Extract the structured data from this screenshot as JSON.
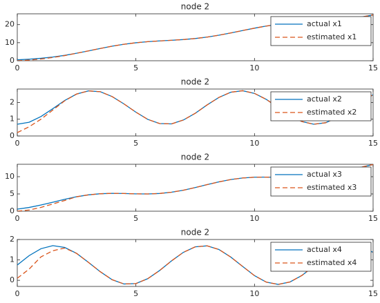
{
  "chart_data": [
    {
      "type": "line",
      "title": "node 2",
      "x": [
        0,
        0.5,
        1,
        1.5,
        2,
        2.5,
        3,
        3.5,
        4,
        4.5,
        5,
        5.5,
        6,
        6.5,
        7,
        7.5,
        8,
        8.5,
        9,
        9.5,
        10,
        10.5,
        11,
        11.5,
        12,
        12.5,
        13,
        13.5,
        14,
        14.5,
        15
      ],
      "series": [
        {
          "name": "actual x1",
          "color": "#0072bd",
          "style": "solid",
          "values": [
            0.5,
            0.87,
            1.36,
            2.05,
            2.99,
            4.15,
            5.46,
            6.8,
            8.06,
            9.13,
            9.96,
            10.56,
            10.98,
            11.34,
            11.74,
            12.31,
            13.11,
            14.15,
            15.39,
            16.73,
            18.04,
            19.23,
            20.2,
            20.93,
            21.44,
            21.82,
            22.18,
            22.65,
            23.31,
            24.22,
            25.35
          ]
        },
        {
          "name": "estimated x1",
          "color": "#d95319",
          "style": "dashed",
          "values": [
            0,
            0.35,
            0.95,
            1.8,
            2.85,
            4.15,
            5.46,
            6.8,
            8.06,
            9.13,
            9.96,
            10.56,
            10.98,
            11.34,
            11.74,
            12.31,
            13.11,
            14.15,
            15.39,
            16.73,
            18.04,
            19.23,
            20.2,
            20.93,
            21.44,
            21.82,
            22.18,
            22.65,
            23.31,
            24.22,
            25.35
          ]
        }
      ],
      "xlim": [
        0,
        15
      ],
      "xticks": [
        0,
        5,
        10,
        15
      ],
      "ylim": [
        0,
        26
      ],
      "yticks": [
        0,
        10,
        20
      ],
      "legend": "upper right"
    },
    {
      "type": "line",
      "title": "node 2",
      "x": [
        0,
        0.5,
        1,
        1.5,
        2,
        2.5,
        3,
        3.5,
        4,
        4.5,
        5,
        5.5,
        6,
        6.5,
        7,
        7.5,
        8,
        8.5,
        9,
        9.5,
        10,
        10.5,
        11,
        11.5,
        12,
        12.5,
        13,
        13.5,
        14,
        14.5,
        15
      ],
      "series": [
        {
          "name": "actual x2",
          "color": "#0072bd",
          "style": "solid",
          "values": [
            0.7,
            0.82,
            1.16,
            1.63,
            2.12,
            2.5,
            2.69,
            2.64,
            2.35,
            1.91,
            1.42,
            0.99,
            0.74,
            0.72,
            0.95,
            1.35,
            1.85,
            2.3,
            2.61,
            2.7,
            2.54,
            2.18,
            1.7,
            1.22,
            0.86,
            0.7,
            0.79,
            1.11,
            1.56,
            2.05,
            2.46
          ]
        },
        {
          "name": "estimated x2",
          "color": "#d95319",
          "style": "dashed",
          "values": [
            0.2,
            0.55,
            1.0,
            1.55,
            2.1,
            2.5,
            2.69,
            2.64,
            2.35,
            1.91,
            1.42,
            0.99,
            0.74,
            0.72,
            0.95,
            1.35,
            1.85,
            2.3,
            2.61,
            2.7,
            2.54,
            2.18,
            1.7,
            1.22,
            0.86,
            0.7,
            0.79,
            1.11,
            1.56,
            2.05,
            2.46
          ]
        }
      ],
      "xlim": [
        0,
        15
      ],
      "xticks": [
        0,
        5,
        10,
        15
      ],
      "ylim": [
        0,
        2.8
      ],
      "yticks": [
        0,
        1,
        2
      ],
      "legend": "upper right"
    },
    {
      "type": "line",
      "title": "node 2",
      "x": [
        0,
        0.5,
        1,
        1.5,
        2,
        2.5,
        3,
        3.5,
        4,
        4.5,
        5,
        5.5,
        6,
        6.5,
        7,
        7.5,
        8,
        8.5,
        9,
        9.5,
        10,
        10.5,
        11,
        11.5,
        12,
        12.5,
        13,
        13.5,
        14,
        14.5,
        15
      ],
      "series": [
        {
          "name": "actual x3",
          "color": "#0072bd",
          "style": "solid",
          "values": [
            0.6,
            1.09,
            1.79,
            2.61,
            3.45,
            4.19,
            4.74,
            5.06,
            5.17,
            5.13,
            5.03,
            5.0,
            5.14,
            5.5,
            6.08,
            6.85,
            7.69,
            8.5,
            9.17,
            9.62,
            9.85,
            9.88,
            9.8,
            9.72,
            9.75,
            9.98,
            10.44,
            11.11,
            11.92,
            12.76,
            13.52
          ]
        },
        {
          "name": "estimated x3",
          "color": "#d95319",
          "style": "dashed",
          "values": [
            0,
            0.35,
            1.1,
            2.1,
            3.1,
            4.19,
            4.74,
            5.06,
            5.17,
            5.13,
            5.03,
            5.0,
            5.14,
            5.5,
            6.08,
            6.85,
            7.69,
            8.5,
            9.17,
            9.62,
            9.85,
            9.88,
            9.8,
            9.72,
            9.75,
            9.98,
            10.44,
            11.11,
            11.92,
            12.76,
            13.52
          ]
        }
      ],
      "xlim": [
        0,
        15
      ],
      "xticks": [
        0,
        5,
        10,
        15
      ],
      "ylim": [
        0,
        13.6
      ],
      "yticks": [
        0,
        5,
        10
      ],
      "legend": "upper right"
    },
    {
      "type": "line",
      "title": "node 2",
      "x": [
        0,
        0.5,
        1,
        1.5,
        2,
        2.5,
        3,
        3.5,
        4,
        4.5,
        5,
        5.5,
        6,
        6.5,
        7,
        7.5,
        8,
        8.5,
        9,
        9.5,
        10,
        10.5,
        11,
        11.5,
        12,
        12.5,
        13,
        13.5,
        14,
        14.5,
        15
      ],
      "series": [
        {
          "name": "actual x4",
          "color": "#0072bd",
          "style": "solid",
          "values": [
            0.75,
            1.21,
            1.55,
            1.7,
            1.61,
            1.32,
            0.88,
            0.42,
            0.03,
            -0.18,
            -0.16,
            0.08,
            0.48,
            0.95,
            1.37,
            1.64,
            1.69,
            1.51,
            1.14,
            0.68,
            0.23,
            -0.09,
            -0.2,
            -0.08,
            0.24,
            0.69,
            1.15,
            1.51,
            1.69,
            1.64,
            1.37
          ]
        },
        {
          "name": "estimated x4",
          "color": "#d95319",
          "style": "dashed",
          "values": [
            0.1,
            0.55,
            1.15,
            1.45,
            1.58,
            1.32,
            0.88,
            0.42,
            0.03,
            -0.18,
            -0.16,
            0.08,
            0.48,
            0.95,
            1.37,
            1.64,
            1.69,
            1.51,
            1.14,
            0.68,
            0.23,
            -0.09,
            -0.2,
            -0.08,
            0.24,
            0.69,
            1.15,
            1.51,
            1.69,
            1.64,
            1.37
          ]
        }
      ],
      "xlim": [
        0,
        15
      ],
      "xticks": [
        0,
        5,
        10,
        15
      ],
      "ylim": [
        -0.3,
        2
      ],
      "yticks": [
        0,
        1,
        2
      ],
      "legend": "upper right"
    }
  ]
}
